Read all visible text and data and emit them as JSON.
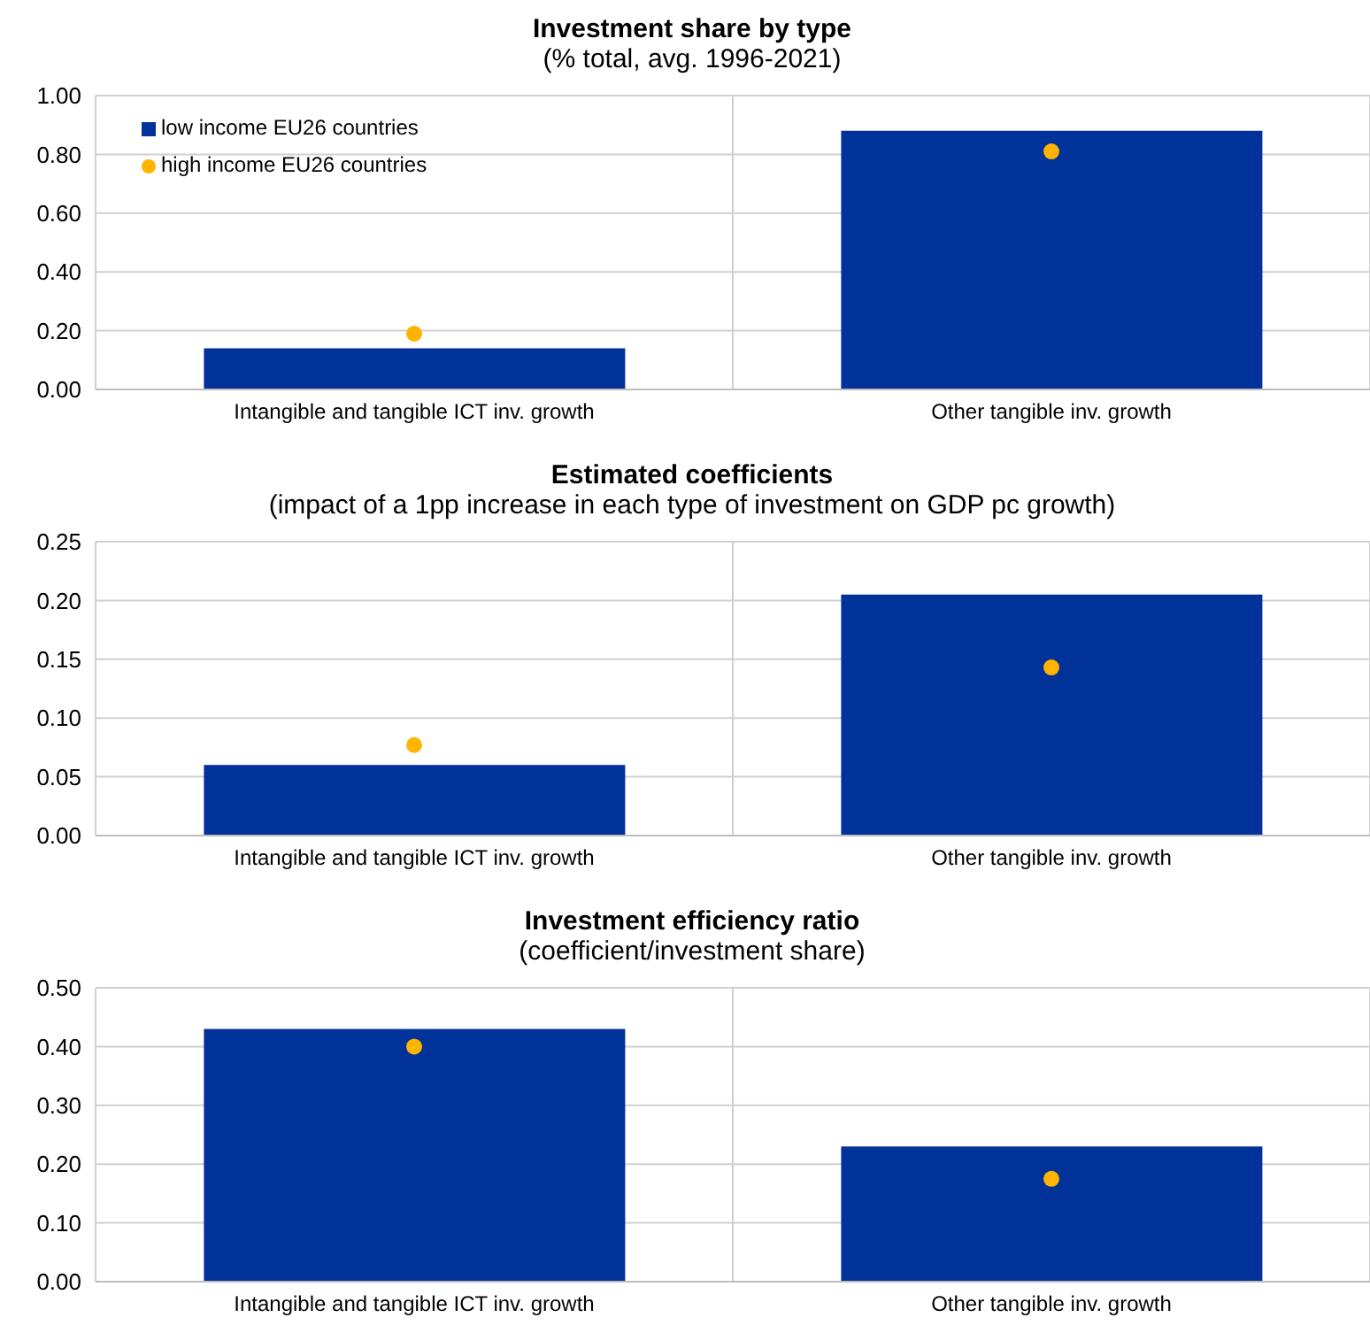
{
  "chart_data": [
    {
      "type": "bar",
      "title": "Investment share by type",
      "subtitle": "(% total, avg. 1996-2021)",
      "categories": [
        "Intangible and tangible ICT inv. growth",
        "Other tangible inv. growth"
      ],
      "series": [
        {
          "name": "low income EU26 countries",
          "color": "#003299",
          "values": [
            0.14,
            0.88
          ]
        },
        {
          "type": "scatter",
          "name": "high income EU26 countries",
          "color": "#ffb400",
          "values": [
            0.19,
            0.81
          ]
        }
      ],
      "ylim": [
        0,
        1
      ],
      "yticks": [
        {
          "value": 0,
          "label": "0.00"
        },
        {
          "value": 0.2,
          "label": "0.20"
        },
        {
          "value": 0.4,
          "label": "0.40"
        },
        {
          "value": 0.6,
          "label": "0.60"
        },
        {
          "value": 0.8,
          "label": "0.80"
        },
        {
          "value": 1,
          "label": "1.00"
        }
      ],
      "grid": true,
      "legend": "top left",
      "marker": "circle"
    },
    {
      "type": "bar",
      "title": "Estimated coefficients",
      "subtitle": "(impact of a 1pp increase in each type of investment on GDP pc growth)",
      "categories": [
        "Intangible and tangible ICT inv. growth",
        "Other tangible inv. growth"
      ],
      "series": [
        {
          "color": "#003299",
          "values": [
            0.06,
            0.205
          ]
        },
        {
          "type": "scatter",
          "color": "#ffb400",
          "values": [
            0.077,
            0.143
          ]
        }
      ],
      "ylim": [
        0,
        0.25
      ],
      "yticks": [
        {
          "value": 0,
          "label": "0.00"
        },
        {
          "value": 0.05,
          "label": "0.05"
        },
        {
          "value": 0.1,
          "label": "0.10"
        },
        {
          "value": 0.15,
          "label": "0.15"
        },
        {
          "value": 0.2,
          "label": "0.20"
        },
        {
          "value": 0.25,
          "label": "0.25"
        }
      ],
      "grid": true,
      "marker": "circle"
    },
    {
      "type": "bar",
      "title": "Investment efficiency ratio",
      "subtitle": "(coefficient/investment share)",
      "categories": [
        "Intangible and tangible ICT inv. growth",
        "Other tangible inv. growth"
      ],
      "series": [
        {
          "color": "#003299",
          "values": [
            0.43,
            0.23
          ]
        },
        {
          "type": "scatter",
          "color": "#ffb400",
          "values": [
            0.4,
            0.175
          ]
        }
      ],
      "ylim": [
        0,
        0.5
      ],
      "yticks": [
        {
          "value": 0,
          "label": "0.00"
        },
        {
          "value": 0.1,
          "label": "0.10"
        },
        {
          "value": 0.2,
          "label": "0.20"
        },
        {
          "value": 0.3,
          "label": "0.30"
        },
        {
          "value": 0.4,
          "label": "0.40"
        },
        {
          "value": 0.5,
          "label": "0.50"
        }
      ],
      "grid": true,
      "marker": "circle"
    }
  ]
}
